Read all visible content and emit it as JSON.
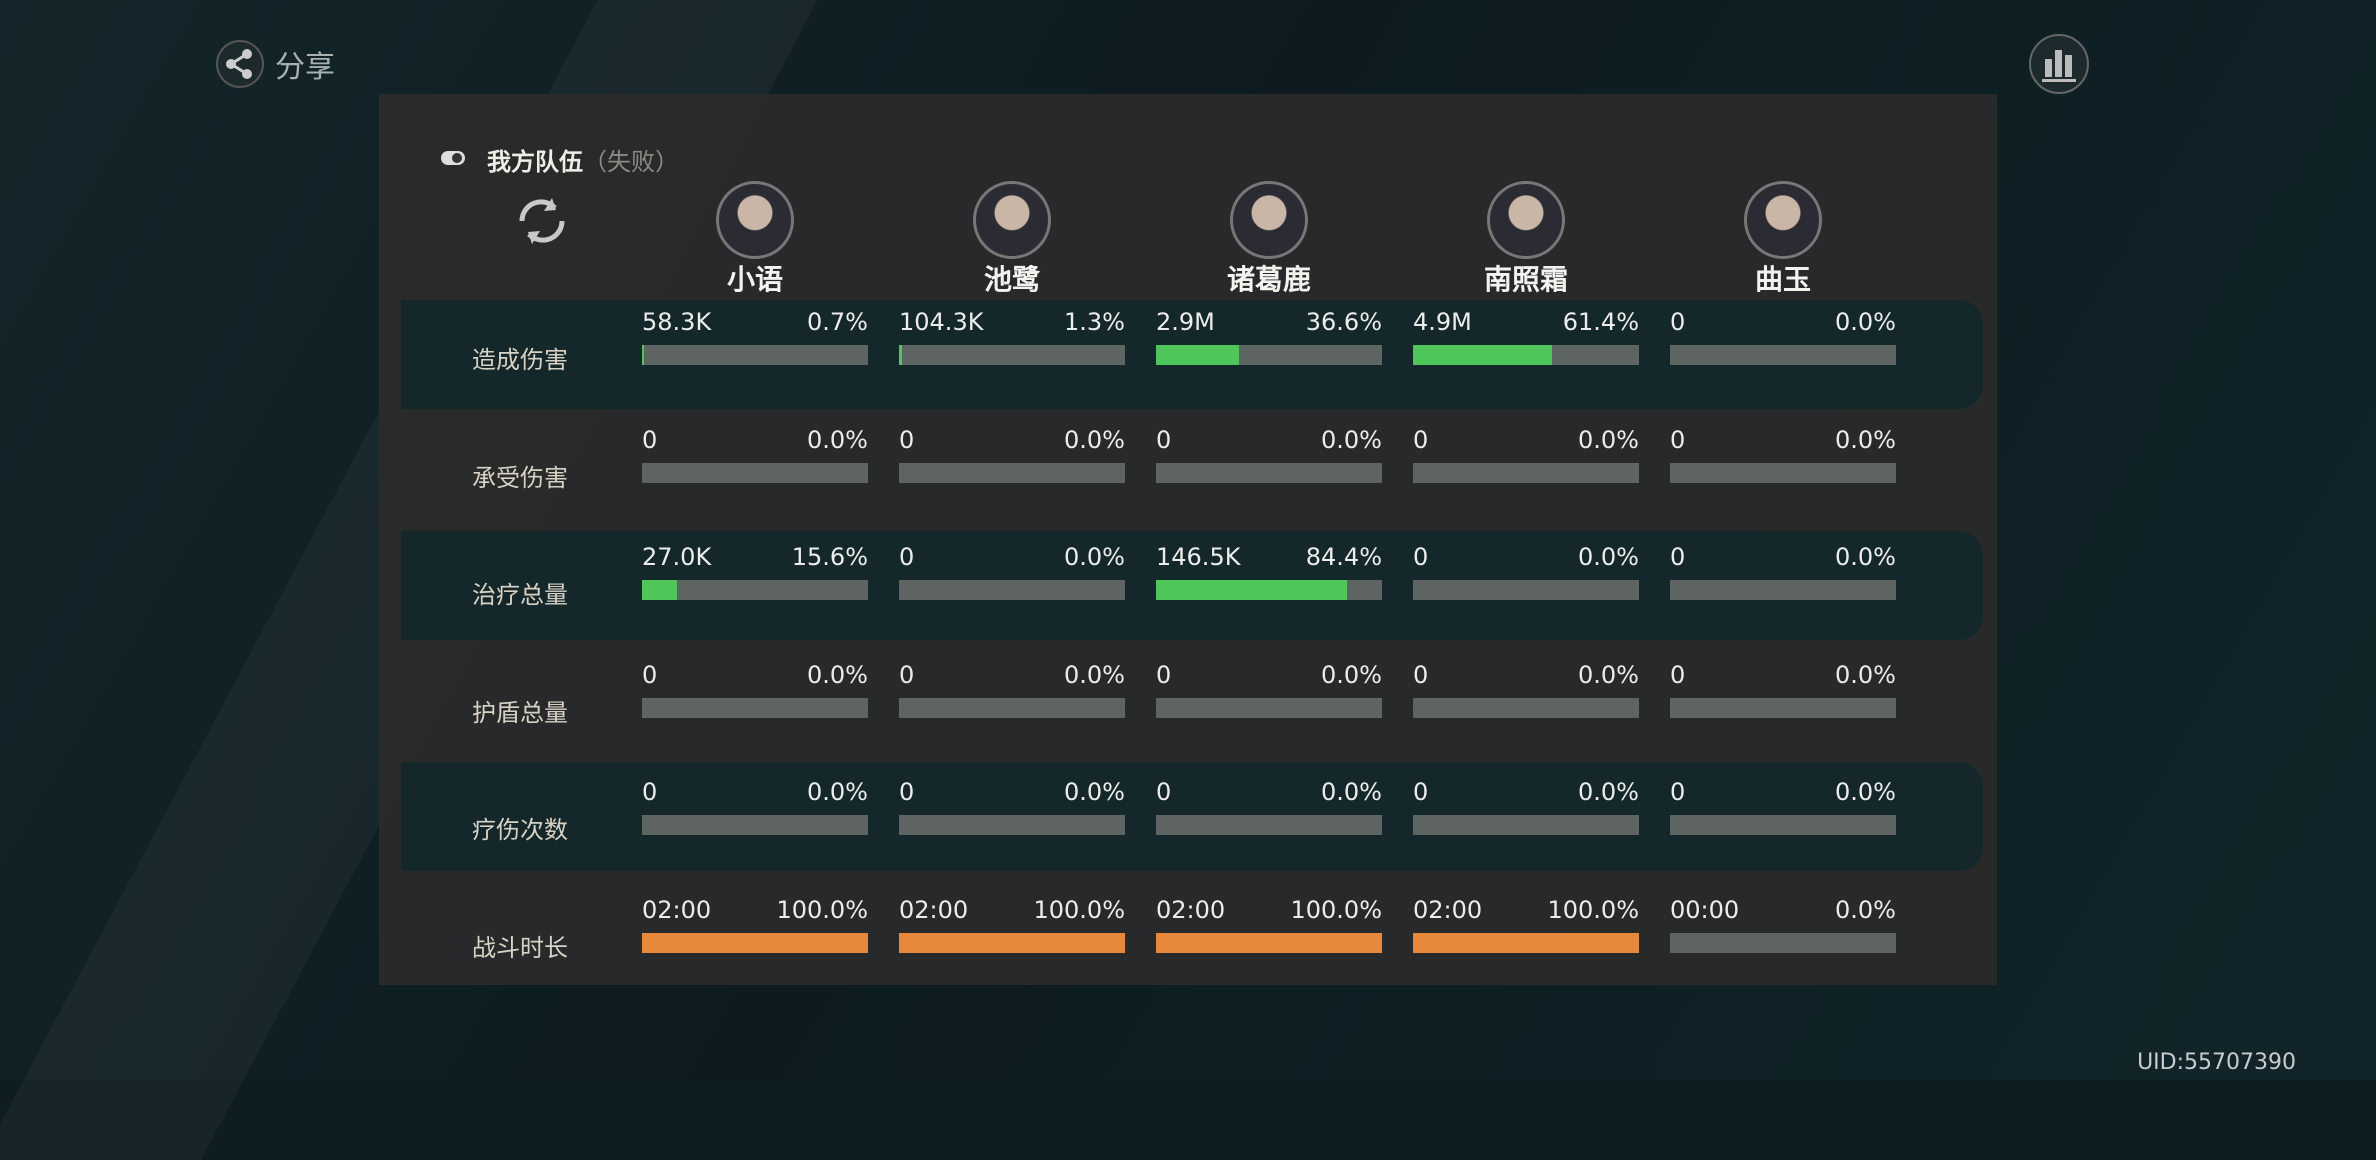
{
  "share": "分享",
  "team": {
    "title": "我方队伍",
    "status": "（失败）"
  },
  "characters": [
    "小语",
    "池鹭",
    "诸葛鹿",
    "南照霜",
    "曲玉"
  ],
  "rows": [
    {
      "label": "造成伤害",
      "bar_color": "#4fc65a",
      "cells": [
        {
          "value": "58.3K",
          "percent": "0.7%"
        },
        {
          "value": "104.3K",
          "percent": "1.3%"
        },
        {
          "value": "2.9M",
          "percent": "36.6%"
        },
        {
          "value": "4.9M",
          "percent": "61.4%"
        },
        {
          "value": "0",
          "percent": "0.0%"
        }
      ]
    },
    {
      "label": "承受伤害",
      "bar_color": "#4fc65a",
      "cells": [
        {
          "value": "0",
          "percent": "0.0%"
        },
        {
          "value": "0",
          "percent": "0.0%"
        },
        {
          "value": "0",
          "percent": "0.0%"
        },
        {
          "value": "0",
          "percent": "0.0%"
        },
        {
          "value": "0",
          "percent": "0.0%"
        }
      ]
    },
    {
      "label": "治疗总量",
      "bar_color": "#4fc65a",
      "cells": [
        {
          "value": "27.0K",
          "percent": "15.6%"
        },
        {
          "value": "0",
          "percent": "0.0%"
        },
        {
          "value": "146.5K",
          "percent": "84.4%"
        },
        {
          "value": "0",
          "percent": "0.0%"
        },
        {
          "value": "0",
          "percent": "0.0%"
        }
      ]
    },
    {
      "label": "护盾总量",
      "bar_color": "#4fc65a",
      "cells": [
        {
          "value": "0",
          "percent": "0.0%"
        },
        {
          "value": "0",
          "percent": "0.0%"
        },
        {
          "value": "0",
          "percent": "0.0%"
        },
        {
          "value": "0",
          "percent": "0.0%"
        },
        {
          "value": "0",
          "percent": "0.0%"
        }
      ]
    },
    {
      "label": "疗伤次数",
      "bar_color": "#4fc65a",
      "cells": [
        {
          "value": "0",
          "percent": "0.0%"
        },
        {
          "value": "0",
          "percent": "0.0%"
        },
        {
          "value": "0",
          "percent": "0.0%"
        },
        {
          "value": "0",
          "percent": "0.0%"
        },
        {
          "value": "0",
          "percent": "0.0%"
        }
      ]
    },
    {
      "label": "战斗时长",
      "bar_color": "#e8883a",
      "cells": [
        {
          "value": "02:00",
          "percent": "100.0%"
        },
        {
          "value": "02:00",
          "percent": "100.0%"
        },
        {
          "value": "02:00",
          "percent": "100.0%"
        },
        {
          "value": "02:00",
          "percent": "100.0%"
        },
        {
          "value": "00:00",
          "percent": "0.0%"
        }
      ]
    }
  ],
  "uid": "UID:55707390"
}
